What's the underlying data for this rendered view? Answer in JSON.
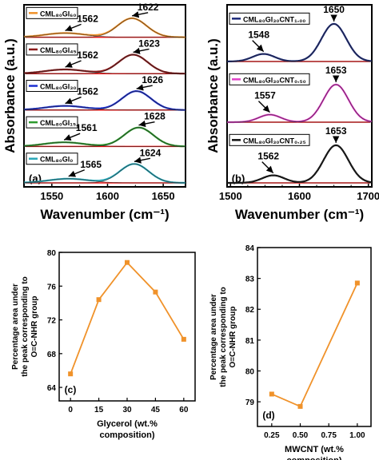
{
  "chart_data": [
    {
      "panel": "(a)",
      "type": "line",
      "xlabel": "Wavenumber (cm⁻¹)",
      "ylabel": "Absorbance (a.u.)",
      "xlim": [
        1525,
        1670
      ],
      "xticks": [
        "1550",
        "1600",
        "1650"
      ],
      "grid": false,
      "legend_placement": "left of each spectrum",
      "series": [
        {
          "name": "CML₈₀Gl₆₀",
          "color": "#f0922a",
          "peaks": [
            {
              "x": 1562,
              "label": "1562"
            },
            {
              "x": 1622,
              "label": "1622"
            }
          ]
        },
        {
          "name": "CML₈₀Gl₄₅",
          "color": "#8b1a1a",
          "peaks": [
            {
              "x": 1562,
              "label": "1562"
            },
            {
              "x": 1623,
              "label": "1623"
            }
          ]
        },
        {
          "name": "CML₈₀Gl₃₀",
          "color": "#1c2fd1",
          "peaks": [
            {
              "x": 1562,
              "label": "1562"
            },
            {
              "x": 1626,
              "label": "1626"
            }
          ]
        },
        {
          "name": "CML₈₀Gl₁₅",
          "color": "#2e9b2e",
          "peaks": [
            {
              "x": 1561,
              "label": "1561"
            },
            {
              "x": 1628,
              "label": "1628"
            }
          ]
        },
        {
          "name": "CML₈₀Gl₀",
          "color": "#2aa7b8",
          "peaks": [
            {
              "x": 1565,
              "label": "1565"
            },
            {
              "x": 1624,
              "label": "1624"
            }
          ]
        }
      ]
    },
    {
      "panel": "(b)",
      "type": "line",
      "xlabel": "Wavenumber (cm⁻¹)",
      "ylabel": "Absorbance (a.u.)",
      "xlim": [
        1495,
        1705
      ],
      "xticks": [
        "1500",
        "1600",
        "1700"
      ],
      "grid": false,
      "legend_placement": "top-left of each spectrum",
      "series": [
        {
          "name": "CML₈₀Gl₃₀CNT₁.₀₀",
          "color": "#1c2a7a",
          "peaks": [
            {
              "x": 1548,
              "label": "1548"
            },
            {
              "x": 1650,
              "label": "1650"
            }
          ]
        },
        {
          "name": "CML₈₀Gl₃₀CNT₀.₅₀",
          "color": "#e040c8",
          "peaks": [
            {
              "x": 1557,
              "label": "1557"
            },
            {
              "x": 1653,
              "label": "1653"
            }
          ]
        },
        {
          "name": "CML₈₀Gl₃₀CNT₀.₂₅",
          "color": "#111111",
          "peaks": [
            {
              "x": 1562,
              "label": "1562"
            },
            {
              "x": 1653,
              "label": "1653"
            }
          ]
        }
      ]
    },
    {
      "panel": "(c)",
      "type": "line",
      "xlabel": "Glycerol (wt.% composition)",
      "ylabel": "Percentage area under the peak corresponding to O=C-NHR group",
      "x": [
        0,
        15,
        30,
        45,
        60
      ],
      "y": [
        65.6,
        74.4,
        78.8,
        75.3,
        69.7
      ],
      "xticks": [
        "0",
        "15",
        "30",
        "45",
        "60"
      ],
      "yticks": [
        "64",
        "68",
        "72",
        "76",
        "80"
      ],
      "xlim": [
        -6,
        66
      ],
      "ylim": [
        62.4,
        80
      ],
      "color": "#f0922a",
      "grid": false
    },
    {
      "panel": "(d)",
      "type": "line",
      "xlabel": "MWCNT (wt.% composition)",
      "ylabel": "Percentage area under the peak corresponding to O=C-NHR group",
      "x": [
        0.25,
        0.5,
        1.0
      ],
      "y": [
        79.25,
        78.85,
        82.85
      ],
      "xticks": [
        "0.25",
        "0.50",
        "0.75",
        "1.00"
      ],
      "yticks": [
        "79",
        "80",
        "81",
        "82",
        "83",
        "84"
      ],
      "xlim": [
        0.125,
        1.12
      ],
      "ylim": [
        78.2,
        84
      ],
      "color": "#f0922a",
      "grid": false
    }
  ]
}
